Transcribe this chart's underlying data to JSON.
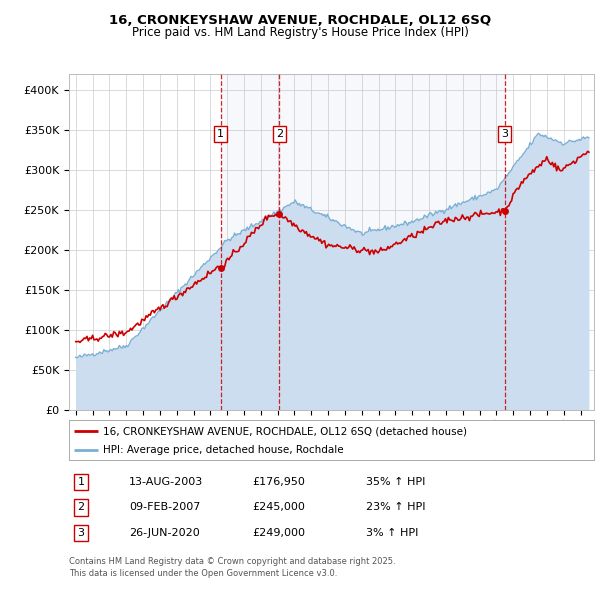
{
  "title": "16, CRONKEYSHAW AVENUE, ROCHDALE, OL12 6SQ",
  "subtitle": "Price paid vs. HM Land Registry's House Price Index (HPI)",
  "ylim": [
    0,
    420000
  ],
  "yticks": [
    0,
    50000,
    100000,
    150000,
    200000,
    250000,
    300000,
    350000,
    400000
  ],
  "ytick_labels": [
    "£0",
    "£50K",
    "£100K",
    "£150K",
    "£200K",
    "£250K",
    "£300K",
    "£350K",
    "£400K"
  ],
  "background_color": "#ffffff",
  "plot_bg_color": "#ffffff",
  "grid_color": "#cccccc",
  "red_line_color": "#cc0000",
  "blue_line_color": "#7aafd4",
  "blue_fill_color": "#ccddf0",
  "sale_line_color": "#cc0000",
  "sale_marker_color": "#cc0000",
  "sale1_date_num": 2003.617,
  "sale1_price": 176950,
  "sale1_label": "1",
  "sale1_date_str": "13-AUG-2003",
  "sale1_price_str": "£176,950",
  "sale1_hpi_str": "35% ↑ HPI",
  "sale2_date_num": 2007.108,
  "sale2_price": 245000,
  "sale2_label": "2",
  "sale2_date_str": "09-FEB-2007",
  "sale2_price_str": "£245,000",
  "sale2_hpi_str": "23% ↑ HPI",
  "sale3_date_num": 2020.486,
  "sale3_price": 249000,
  "sale3_label": "3",
  "sale3_date_str": "26-JUN-2020",
  "sale3_price_str": "£249,000",
  "sale3_hpi_str": "3% ↑ HPI",
  "legend_line1": "16, CRONKEYSHAW AVENUE, ROCHDALE, OL12 6SQ (detached house)",
  "legend_line2": "HPI: Average price, detached house, Rochdale",
  "footer1": "Contains HM Land Registry data © Crown copyright and database right 2025.",
  "footer2": "This data is licensed under the Open Government Licence v3.0."
}
